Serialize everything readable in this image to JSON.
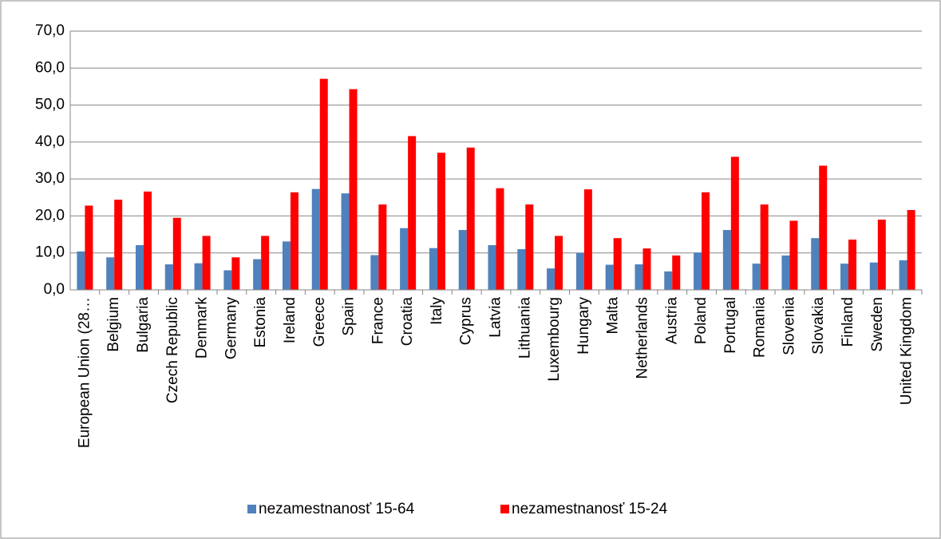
{
  "chart_data": {
    "type": "bar",
    "categories": [
      "European Union (28…",
      "Belgium",
      "Bulgaria",
      "Czech Republic",
      "Denmark",
      "Germany",
      "Estonia",
      "Ireland",
      "Greece",
      "Spain",
      "France",
      "Croatia",
      "Italy",
      "Cyprus",
      "Latvia",
      "Lithuania",
      "Luxembourg",
      "Hungary",
      "Malta",
      "Netherlands",
      "Austria",
      "Poland",
      "Portugal",
      "Romania",
      "Slovenia",
      "Slovakia",
      "Finland",
      "Sweden",
      "United Kingdom"
    ],
    "series": [
      {
        "name": "nezamestnanosť 15-64",
        "color": "#4f81bd",
        "values": [
          10.4,
          8.8,
          12.1,
          6.9,
          7.2,
          5.3,
          8.3,
          13.1,
          27.3,
          26.1,
          9.4,
          16.7,
          11.3,
          16.2,
          12.1,
          11.0,
          5.8,
          10.0,
          6.8,
          6.9,
          5.0,
          10.1,
          16.2,
          7.1,
          9.3,
          14.0,
          7.1,
          7.4,
          8.0
        ]
      },
      {
        "name": "nezamestnanosť 15-24",
        "color": "#ff0000",
        "values": [
          22.8,
          24.4,
          26.6,
          19.5,
          14.6,
          8.8,
          14.6,
          26.4,
          57.1,
          54.3,
          23.1,
          41.6,
          37.1,
          38.5,
          27.5,
          23.1,
          14.6,
          27.2,
          14.0,
          11.2,
          9.3,
          26.4,
          36.0,
          23.1,
          18.7,
          33.6,
          13.6,
          19.0,
          21.6
        ]
      }
    ],
    "ylim": [
      0,
      70
    ],
    "yticks": [
      {
        "value": 0,
        "label": "0,0"
      },
      {
        "value": 10,
        "label": "10,0"
      },
      {
        "value": 20,
        "label": "20,0"
      },
      {
        "value": 30,
        "label": "30,0"
      },
      {
        "value": 40,
        "label": "40,0"
      },
      {
        "value": 50,
        "label": "50,0"
      },
      {
        "value": 60,
        "label": "60,0"
      },
      {
        "value": 70,
        "label": "70,0"
      }
    ],
    "grid": true,
    "legend": "bottom"
  }
}
